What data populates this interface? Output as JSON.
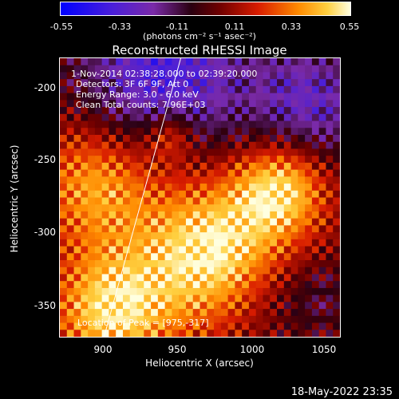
{
  "chart_data": {
    "type": "heatmap",
    "title": "Reconstructed RHESSI Image",
    "xlabel": "Heliocentric X (arcsec)",
    "ylabel": "Heliocentric Y (arcsec)",
    "xlim": [
      870,
      1060
    ],
    "ylim": [
      -373,
      -185
    ],
    "x_ticks": [
      "900",
      "950",
      "1000",
      "1050"
    ],
    "y_ticks": [
      "-200",
      "-250",
      "-300",
      "-350"
    ],
    "colorbar": {
      "ticks": [
        "-0.55",
        "-0.33",
        "-0.11",
        "0.11",
        "0.33",
        "0.55"
      ],
      "range": [
        -0.55,
        0.55
      ],
      "unit": "(photons cm⁻² s⁻¹ asec⁻²)"
    },
    "annotations": {
      "time": "1-Nov-2014 02:38:28.000 to 02:39:20.000",
      "detectors": "Detectors: 3F 6F 9F, Att 0",
      "energy": "Energy Range: 3.0 - 6.0 keV",
      "method": "Clean    Total counts: 7.96E+03",
      "peak": "Location of Peak = [975,-317]"
    },
    "limb_line": {
      "x": [
        900,
        952
      ],
      "y": [
        -373,
        -185
      ]
    }
  },
  "footer": {
    "date": "18-May-2022 23:35"
  }
}
